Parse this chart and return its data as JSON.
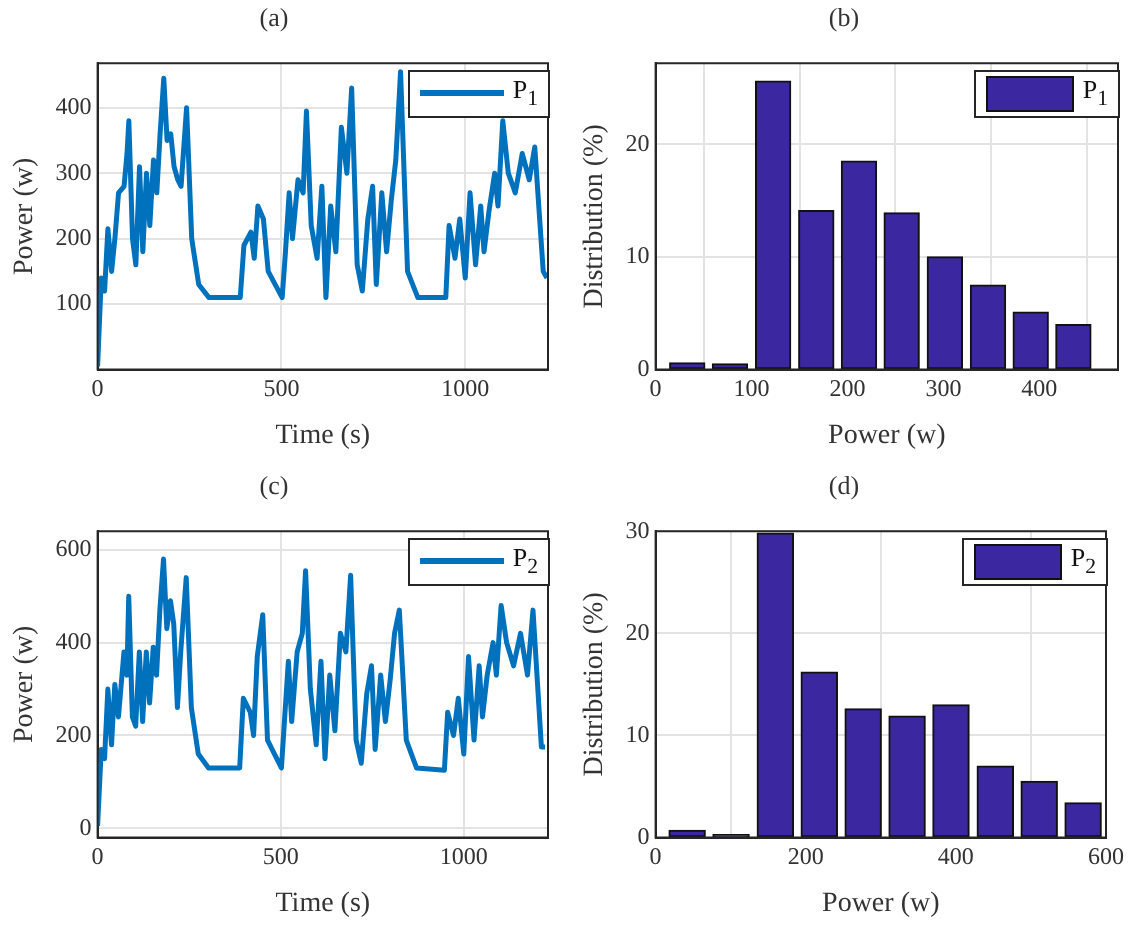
{
  "chart_data": [
    {
      "type": "line",
      "title": "(a)",
      "xlabel": "Time (s)",
      "ylabel": "Power (w)",
      "x": [
        0,
        10,
        19,
        28,
        38,
        47,
        57,
        72,
        80,
        85,
        95,
        104,
        114,
        123,
        133,
        142,
        152,
        161,
        170,
        180,
        189,
        199,
        208,
        218,
        227,
        242,
        256,
        275,
        303,
        388,
        398,
        417,
        426,
        436,
        451,
        464,
        502,
        511,
        521,
        530,
        545,
        559,
        568,
        581,
        597,
        610,
        621,
        634,
        648,
        663,
        678,
        691,
        706,
        720,
        735,
        748,
        758,
        773,
        786,
        799,
        811,
        824,
        843,
        871,
        947,
        956,
        972,
        985,
        1000,
        1013,
        1028,
        1042,
        1051,
        1064,
        1080,
        1089,
        1102,
        1117,
        1136,
        1155,
        1174,
        1189,
        1212,
        1222
      ],
      "series": [
        {
          "name": "P$_{1}$",
          "color": "#0072bd",
          "values": [
            5,
            140,
            120,
            215,
            150,
            200,
            270,
            280,
            330,
            380,
            200,
            160,
            310,
            180,
            300,
            220,
            320,
            270,
            360,
            445,
            350,
            360,
            310,
            290,
            280,
            400,
            200,
            130,
            110,
            110,
            190,
            210,
            170,
            250,
            230,
            150,
            110,
            180,
            270,
            200,
            290,
            270,
            395,
            220,
            170,
            280,
            110,
            250,
            180,
            370,
            300,
            430,
            160,
            120,
            230,
            280,
            130,
            270,
            180,
            260,
            320,
            455,
            150,
            110,
            110,
            220,
            170,
            230,
            140,
            270,
            160,
            250,
            180,
            240,
            300,
            250,
            380,
            300,
            270,
            330,
            290,
            340,
            150,
            140
          ]
        }
      ],
      "xlim": [
        0,
        1225
      ],
      "xticks": [
        0,
        500,
        1000
      ],
      "ylim": [
        0,
        468
      ],
      "yticks": [
        100,
        200,
        300,
        400
      ],
      "grid": true,
      "legend": "top right"
    },
    {
      "type": "histogram",
      "title": "(b)",
      "xlabel": "Power (w)",
      "ylabel": "Distribution (%)",
      "bins": [
        11,
        55,
        100,
        145,
        190,
        234,
        279,
        324,
        369,
        413,
        458
      ],
      "series": [
        {
          "name": "P$_{1}$",
          "color": "#3b28a0",
          "values": [
            0.6,
            0.5,
            25.6,
            14.1,
            18.5,
            13.9,
            10,
            7.5,
            5.1,
            4.0
          ]
        }
      ],
      "xlim": [
        0,
        482
      ],
      "xticks": [
        0,
        100,
        200,
        300,
        400
      ],
      "ylim": [
        0,
        27.2
      ],
      "yticks": [
        0,
        10,
        20
      ],
      "grid": true,
      "legend": "top right"
    },
    {
      "type": "line",
      "title": "(c)",
      "xlabel": "Time (s)",
      "ylabel": "Power (w)",
      "x": [
        0,
        10,
        19,
        28,
        38,
        47,
        57,
        72,
        80,
        85,
        95,
        104,
        114,
        123,
        133,
        142,
        152,
        161,
        170,
        180,
        189,
        199,
        208,
        218,
        227,
        242,
        256,
        275,
        303,
        388,
        398,
        417,
        426,
        436,
        451,
        464,
        502,
        511,
        521,
        530,
        545,
        559,
        568,
        581,
        597,
        610,
        621,
        634,
        648,
        663,
        678,
        691,
        706,
        720,
        735,
        748,
        758,
        773,
        786,
        799,
        811,
        824,
        843,
        871,
        947,
        956,
        972,
        985,
        1000,
        1013,
        1028,
        1042,
        1051,
        1064,
        1080,
        1089,
        1102,
        1117,
        1136,
        1155,
        1174,
        1189,
        1212,
        1222
      ],
      "series": [
        {
          "name": "P$_{2}$",
          "color": "#0072bd",
          "values": [
            5,
            170,
            150,
            300,
            180,
            310,
            240,
            380,
            330,
            500,
            240,
            220,
            380,
            230,
            380,
            270,
            390,
            330,
            470,
            580,
            430,
            490,
            440,
            260,
            380,
            540,
            260,
            160,
            130,
            130,
            280,
            250,
            200,
            370,
            460,
            190,
            130,
            240,
            360,
            230,
            380,
            420,
            555,
            300,
            180,
            360,
            150,
            330,
            210,
            420,
            380,
            545,
            190,
            140,
            290,
            350,
            170,
            330,
            230,
            320,
            420,
            470,
            190,
            130,
            125,
            250,
            200,
            280,
            160,
            370,
            190,
            350,
            240,
            330,
            400,
            330,
            480,
            400,
            350,
            420,
            330,
            470,
            175,
            175
          ]
        }
      ],
      "xlim": [
        0,
        1230
      ],
      "xticks": [
        0,
        500,
        1000
      ],
      "ylim": [
        -20,
        640
      ],
      "yticks": [
        0,
        200,
        400,
        600
      ],
      "grid": true,
      "legend": "top right"
    },
    {
      "type": "histogram",
      "title": "(d)",
      "xlabel": "Power (w)",
      "ylabel": "Distribution (%)",
      "bins": [
        13,
        71,
        130,
        189,
        247,
        306,
        364,
        423,
        482,
        540,
        599
      ],
      "series": [
        {
          "name": "P$_{2}$",
          "color": "#3b28a0",
          "values": [
            0.7,
            0.3,
            29.8,
            16.2,
            12.6,
            11.9,
            13.0,
            7.0,
            5.5,
            3.4
          ]
        }
      ],
      "xlim": [
        0,
        600
      ],
      "xticks": [
        0,
        200,
        400,
        600
      ],
      "ylim": [
        0,
        30
      ],
      "yticks": [
        0,
        10,
        20,
        30
      ],
      "grid": true,
      "legend": "top right"
    }
  ]
}
